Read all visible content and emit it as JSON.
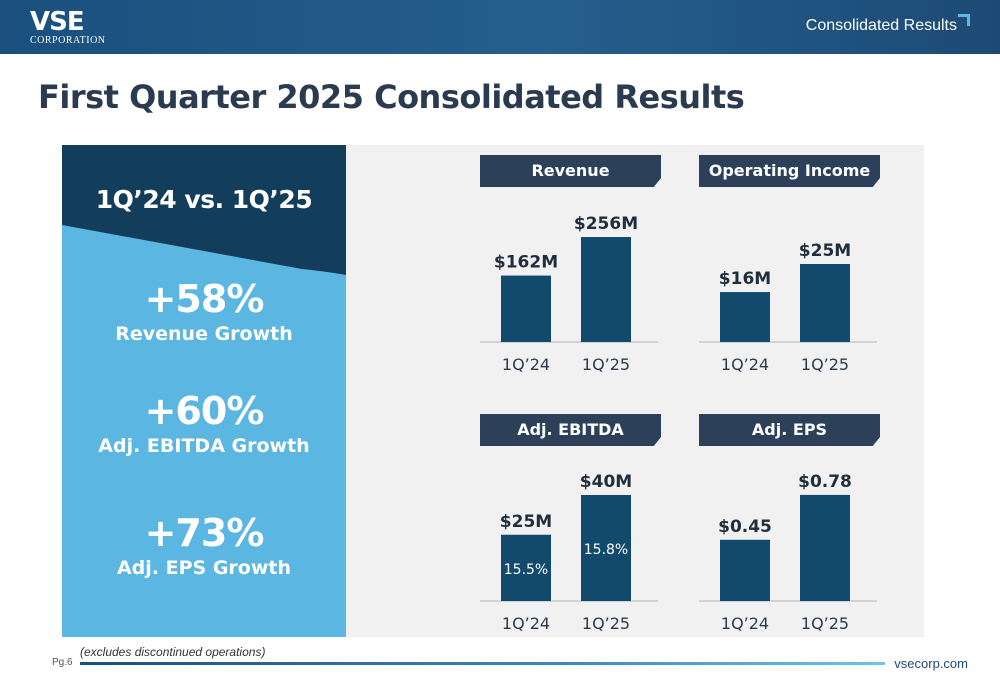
{
  "header": {
    "logo_main": "VSE",
    "logo_sub": "CORPORATION",
    "section_title": "Consolidated Results"
  },
  "page_title": "First Quarter 2025 Consolidated Results",
  "summary": {
    "comparison_title": "1Q’24 vs. 1Q’25",
    "metrics": [
      {
        "value": "+58%",
        "label": "Revenue Growth"
      },
      {
        "value": "+60%",
        "label": "Adj. EBITDA Growth"
      },
      {
        "value": "+73%",
        "label": "Adj. EPS Growth"
      }
    ]
  },
  "chart_data": [
    {
      "type": "bar",
      "title": "Revenue",
      "categories": [
        "1Q’24",
        "1Q’25"
      ],
      "values": [
        162,
        256
      ],
      "data_labels": [
        "$162M",
        "$256M"
      ],
      "inner_labels": [
        "",
        ""
      ],
      "unit": "$M"
    },
    {
      "type": "bar",
      "title": "Operating Income",
      "categories": [
        "1Q’24",
        "1Q’25"
      ],
      "values": [
        16,
        25
      ],
      "data_labels": [
        "$16M",
        "$25M"
      ],
      "inner_labels": [
        "",
        ""
      ],
      "unit": "$M"
    },
    {
      "type": "bar",
      "title": "Adj. EBITDA",
      "categories": [
        "1Q’24",
        "1Q’25"
      ],
      "values": [
        25,
        40
      ],
      "data_labels": [
        "$25M",
        "$40M"
      ],
      "inner_labels": [
        "15.5%",
        "15.8%"
      ],
      "unit": "$M"
    },
    {
      "type": "bar",
      "title": "Adj. EPS",
      "categories": [
        "1Q’24",
        "1Q’25"
      ],
      "values": [
        0.45,
        0.78
      ],
      "data_labels": [
        "$0.45",
        "$0.78"
      ],
      "inner_labels": [
        "",
        ""
      ],
      "unit": "$"
    }
  ],
  "footer": {
    "footnote": "(excludes discontinued operations)",
    "page_number": "Pg.6",
    "website": "vsecorp.com"
  },
  "colors": {
    "bar": "#124a6e",
    "header_bar": "#2c4159",
    "summary_dark": "#123e5c",
    "summary_light": "#5cb6e2",
    "title_text": "#2b3b4f"
  }
}
